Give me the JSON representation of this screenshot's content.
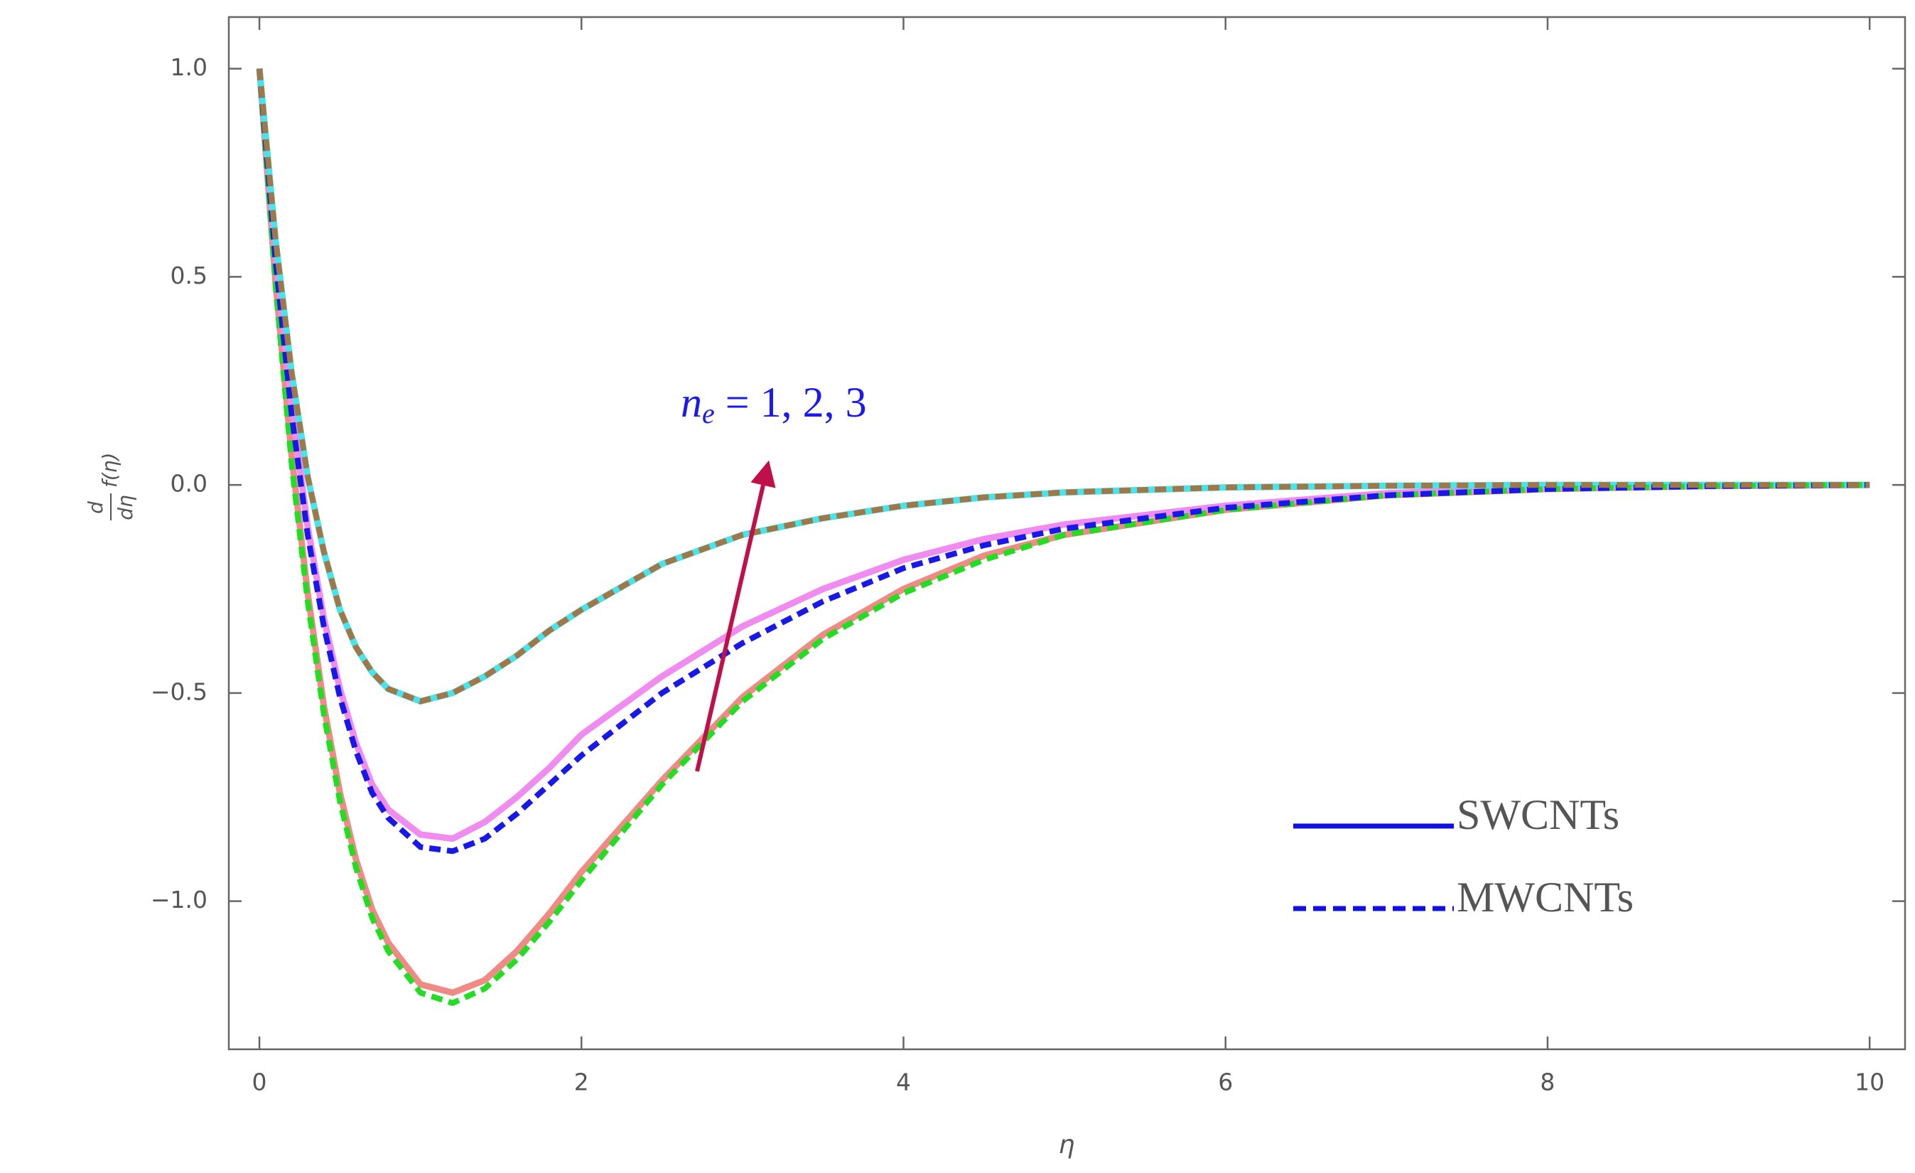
{
  "chart_data": {
    "type": "line",
    "x_label": "η",
    "y_label": {
      "numerator": "d",
      "denominator": "dη",
      "expression": "f(η)"
    },
    "x": [
      0,
      0.1,
      0.2,
      0.3,
      0.4,
      0.5,
      0.6,
      0.7,
      0.8,
      1,
      1.2,
      1.4,
      1.6,
      1.8,
      2,
      2.5,
      3,
      3.5,
      4,
      4.5,
      5,
      6,
      7,
      8,
      9,
      10
    ],
    "series": [
      {
        "color": "#f08a84",
        "dashed": false,
        "values": [
          1,
          0.49,
          0.07,
          -0.26,
          -0.53,
          -0.74,
          -0.9,
          -1.02,
          -1.1,
          -1.2,
          -1.22,
          -1.19,
          -1.12,
          -1.03,
          -0.93,
          -0.71,
          -0.51,
          -0.36,
          -0.25,
          -0.17,
          -0.12,
          -0.06,
          -0.025,
          -0.01,
          -0.003,
          0
        ]
      },
      {
        "color": "#f08cf0",
        "dashed": false,
        "values": [
          1,
          0.55,
          0.19,
          -0.1,
          -0.32,
          -0.49,
          -0.62,
          -0.72,
          -0.78,
          -0.84,
          -0.85,
          -0.81,
          -0.75,
          -0.68,
          -0.6,
          -0.46,
          -0.34,
          -0.25,
          -0.18,
          -0.13,
          -0.095,
          -0.05,
          -0.02,
          -0.007,
          -0.002,
          0
        ]
      },
      {
        "color": "#48e4ec",
        "dashed": false,
        "values": [
          1,
          0.59,
          0.27,
          0.02,
          -0.16,
          -0.3,
          -0.39,
          -0.45,
          -0.49,
          -0.52,
          -0.5,
          -0.46,
          -0.41,
          -0.35,
          -0.3,
          -0.19,
          -0.12,
          -0.08,
          -0.05,
          -0.03,
          -0.018,
          -0.006,
          -0.002,
          0,
          0,
          0
        ]
      },
      {
        "color": "#22dd22",
        "dashed": true,
        "values": [
          1,
          0.48,
          0.05,
          -0.28,
          -0.55,
          -0.76,
          -0.92,
          -1.04,
          -1.12,
          -1.22,
          -1.245,
          -1.21,
          -1.14,
          -1.05,
          -0.95,
          -0.72,
          -0.52,
          -0.37,
          -0.26,
          -0.18,
          -0.12,
          -0.06,
          -0.025,
          -0.01,
          -0.003,
          0
        ]
      },
      {
        "color": "#1818e8",
        "dashed": true,
        "values": [
          1,
          0.54,
          0.17,
          -0.12,
          -0.34,
          -0.51,
          -0.64,
          -0.74,
          -0.8,
          -0.87,
          -0.88,
          -0.85,
          -0.79,
          -0.72,
          -0.65,
          -0.5,
          -0.38,
          -0.28,
          -0.2,
          -0.145,
          -0.105,
          -0.055,
          -0.025,
          -0.01,
          -0.003,
          0
        ]
      },
      {
        "color": "#a07848",
        "dashed": true,
        "values": [
          1,
          0.59,
          0.27,
          0.02,
          -0.16,
          -0.3,
          -0.39,
          -0.45,
          -0.49,
          -0.52,
          -0.5,
          -0.46,
          -0.41,
          -0.35,
          -0.3,
          -0.19,
          -0.12,
          -0.08,
          -0.05,
          -0.03,
          -0.018,
          -0.006,
          -0.002,
          0,
          0,
          0
        ]
      }
    ],
    "xlim": [
      -0.19,
      10.22
    ],
    "ylim": [
      -1.356,
      1.124
    ],
    "xticks": [
      0,
      2,
      4,
      6,
      8,
      10
    ],
    "yticks": [
      {
        "value": 1,
        "label": "1.0"
      },
      {
        "value": 0.5,
        "label": "0.5"
      },
      {
        "value": 0,
        "label": "0.0"
      },
      {
        "value": -0.5,
        "label": "−0.5"
      },
      {
        "value": -1,
        "label": "−1.0"
      }
    ],
    "annotation": {
      "color": "#1a1aee",
      "symbol": "n",
      "subscript": "e",
      "text": " = 1, 2, 3"
    },
    "legend": {
      "text_color": "#ee22ee",
      "items": [
        {
          "label": "SWCNTs",
          "color": "#1010e0",
          "dashed": false
        },
        {
          "label": "MWCNTs",
          "color": "#1010e0",
          "dashed": true
        }
      ]
    }
  }
}
